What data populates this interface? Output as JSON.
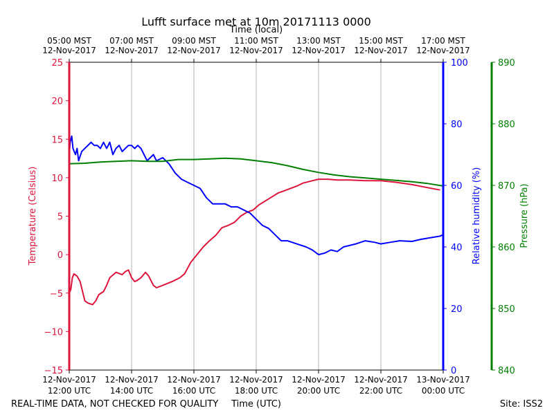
{
  "chart_data": {
    "type": "line",
    "title": "Lufft surface met at 10m 20171113 0000",
    "xlabel_bottom": "Time (UTC)",
    "xlabel_top": "Time (local)",
    "bottom_ticks": [
      {
        "hour": 12,
        "line1": "12-Nov-2017",
        "line2": "12:00 UTC"
      },
      {
        "hour": 14,
        "line1": "12-Nov-2017",
        "line2": "14:00 UTC"
      },
      {
        "hour": 16,
        "line1": "12-Nov-2017",
        "line2": "16:00 UTC"
      },
      {
        "hour": 18,
        "line1": "12-Nov-2017",
        "line2": "18:00 UTC"
      },
      {
        "hour": 20,
        "line1": "12-Nov-2017",
        "line2": "20:00 UTC"
      },
      {
        "hour": 22,
        "line1": "12-Nov-2017",
        "line2": "22:00 UTC"
      },
      {
        "hour": 24,
        "line1": "13-Nov-2017",
        "line2": "00:00 UTC"
      }
    ],
    "top_ticks": [
      {
        "hour": 12,
        "line1": "05:00 MST",
        "line2": "12-Nov-2017"
      },
      {
        "hour": 14,
        "line1": "07:00 MST",
        "line2": "12-Nov-2017"
      },
      {
        "hour": 16,
        "line1": "09:00 MST",
        "line2": "12-Nov-2017"
      },
      {
        "hour": 18,
        "line1": "11:00 MST",
        "line2": "12-Nov-2017"
      },
      {
        "hour": 20,
        "line1": "13:00 MST",
        "line2": "12-Nov-2017"
      },
      {
        "hour": 22,
        "line1": "15:00 MST",
        "line2": "12-Nov-2017"
      },
      {
        "hour": 24,
        "line1": "17:00 MST",
        "line2": "12-Nov-2017"
      }
    ],
    "xlim": [
      12,
      24
    ],
    "grid": "vertical",
    "axes": {
      "temperature": {
        "label": "Temperature (Celsius)",
        "color": "#dc143c",
        "ylim": [
          -15,
          25
        ],
        "ticks": [
          -15,
          -10,
          -5,
          0,
          5,
          10,
          15,
          20,
          25
        ],
        "tick_labels": [
          "−15",
          "−10",
          "−5",
          "0",
          "5",
          "10",
          "15",
          "20",
          "25"
        ]
      },
      "humidity": {
        "label": "Relative humidity (%)",
        "color": "#0000ff",
        "ylim": [
          0,
          100
        ],
        "ticks": [
          0,
          20,
          40,
          60,
          80,
          100
        ],
        "tick_labels": [
          "0",
          "20",
          "40",
          "60",
          "80",
          "100"
        ]
      },
      "pressure": {
        "label": "Pressure (hPa)",
        "color": "#008000",
        "ylim": [
          840,
          890
        ],
        "ticks": [
          840,
          850,
          860,
          870,
          880,
          890
        ],
        "tick_labels": [
          "840",
          "850",
          "860",
          "870",
          "880",
          "890"
        ]
      }
    },
    "series": [
      {
        "name": "Temperature",
        "axis": "temperature",
        "color": "#dc143c",
        "x": [
          12.0,
          12.05,
          12.1,
          12.15,
          12.25,
          12.35,
          12.5,
          12.6,
          12.75,
          12.85,
          12.95,
          13.1,
          13.2,
          13.3,
          13.5,
          13.7,
          13.8,
          13.9,
          14.0,
          14.1,
          14.2,
          14.3,
          14.45,
          14.55,
          14.7,
          14.8,
          15.0,
          15.3,
          15.55,
          15.7,
          15.9,
          16.1,
          16.3,
          16.5,
          16.7,
          16.9,
          17.1,
          17.3,
          17.5,
          17.7,
          17.9,
          18.1,
          18.3,
          18.5,
          18.7,
          18.9,
          19.1,
          19.3,
          19.5,
          19.8,
          20.0,
          20.3,
          20.6,
          21.0,
          21.5,
          22.0,
          22.5,
          23.0,
          23.5,
          23.9
        ],
        "values": [
          -5.0,
          -4.5,
          -3.0,
          -2.5,
          -2.8,
          -3.5,
          -6.0,
          -6.3,
          -6.5,
          -6.0,
          -5.2,
          -4.8,
          -4.0,
          -3.0,
          -2.3,
          -2.6,
          -2.2,
          -2.0,
          -3.0,
          -3.5,
          -3.3,
          -3.0,
          -2.3,
          -2.8,
          -4.0,
          -4.3,
          -4.0,
          -3.5,
          -3.0,
          -2.5,
          -1.0,
          0.0,
          1.0,
          1.8,
          2.5,
          3.5,
          3.8,
          4.2,
          5.0,
          5.5,
          5.8,
          6.5,
          7.0,
          7.5,
          8.0,
          8.3,
          8.6,
          8.9,
          9.3,
          9.6,
          9.8,
          9.8,
          9.7,
          9.7,
          9.6,
          9.6,
          9.4,
          9.1,
          8.7,
          8.4
        ]
      },
      {
        "name": "Relative humidity",
        "axis": "humidity",
        "color": "#0000ff",
        "x": [
          12.0,
          12.03,
          12.08,
          12.12,
          12.2,
          12.25,
          12.3,
          12.4,
          12.5,
          12.6,
          12.7,
          12.8,
          12.9,
          13.0,
          13.1,
          13.2,
          13.3,
          13.4,
          13.5,
          13.6,
          13.7,
          13.8,
          13.9,
          14.0,
          14.1,
          14.2,
          14.3,
          14.4,
          14.5,
          14.6,
          14.7,
          14.8,
          15.0,
          15.2,
          15.4,
          15.6,
          15.8,
          16.0,
          16.2,
          16.4,
          16.6,
          16.8,
          17.0,
          17.2,
          17.4,
          17.6,
          17.8,
          18.0,
          18.2,
          18.4,
          18.6,
          18.8,
          19.0,
          19.3,
          19.6,
          19.8,
          20.0,
          20.2,
          20.4,
          20.6,
          20.8,
          21.0,
          21.2,
          21.5,
          21.8,
          22.0,
          22.3,
          22.6,
          23.0,
          23.3,
          23.6,
          23.9,
          24.0
        ],
        "values": [
          70.0,
          74.0,
          76.0,
          72.0,
          70.0,
          72.0,
          68.0,
          71.0,
          72.0,
          73.0,
          74.0,
          73.0,
          73.0,
          72.0,
          74.0,
          72.0,
          74.0,
          70.0,
          72.0,
          73.0,
          71.0,
          72.0,
          73.0,
          73.0,
          72.0,
          73.0,
          72.0,
          70.0,
          68.0,
          69.0,
          70.0,
          68.0,
          69.0,
          67.0,
          64.0,
          62.0,
          61.0,
          60.0,
          59.0,
          56.0,
          54.0,
          54.0,
          54.0,
          53.0,
          53.0,
          52.0,
          51.0,
          49.0,
          47.0,
          46.0,
          44.0,
          42.0,
          42.0,
          41.0,
          40.0,
          39.0,
          37.5,
          38.0,
          39.0,
          38.5,
          40.0,
          40.5,
          41.0,
          42.0,
          41.5,
          41.0,
          41.5,
          42.0,
          41.8,
          42.5,
          43.0,
          43.5,
          44.0
        ]
      },
      {
        "name": "Pressure",
        "axis": "pressure",
        "color": "#008000",
        "x": [
          12.0,
          12.5,
          13.0,
          13.5,
          14.0,
          14.5,
          15.0,
          15.5,
          16.0,
          16.5,
          17.0,
          17.5,
          18.0,
          18.5,
          19.0,
          19.5,
          20.0,
          20.5,
          21.0,
          21.5,
          22.0,
          22.5,
          23.0,
          23.5,
          24.0
        ],
        "values": [
          873.5,
          873.6,
          873.8,
          873.9,
          874.0,
          873.9,
          873.9,
          874.2,
          874.2,
          874.3,
          874.4,
          874.3,
          874.0,
          873.7,
          873.2,
          872.6,
          872.1,
          871.7,
          871.4,
          871.2,
          871.0,
          870.8,
          870.6,
          870.3,
          869.9
        ]
      }
    ]
  },
  "footer": {
    "left": "REAL-TIME DATA, NOT CHECKED FOR QUALITY",
    "right": "Site: ISS2"
  }
}
